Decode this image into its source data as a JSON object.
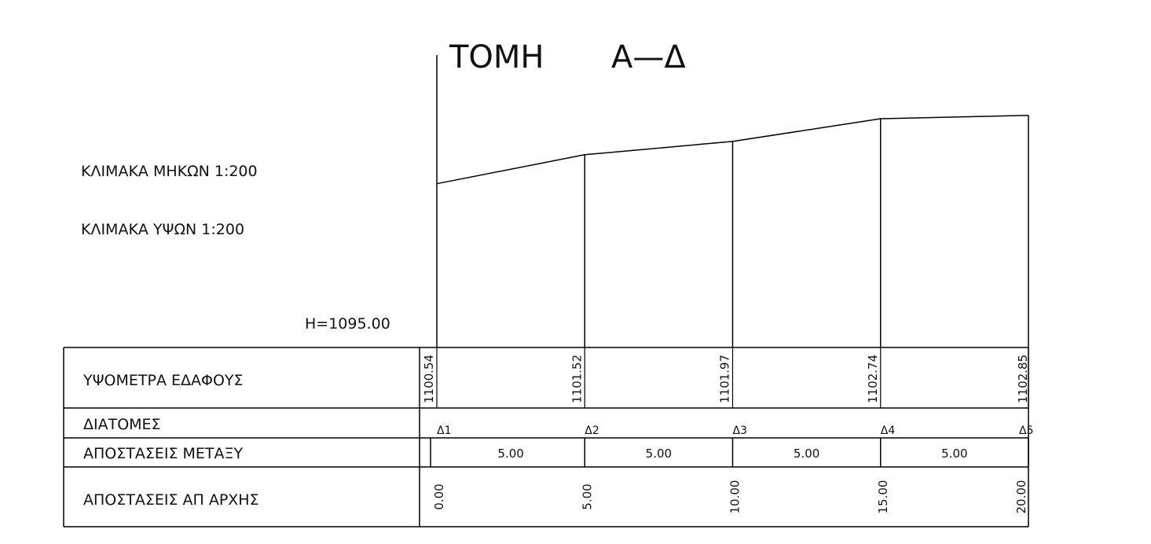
{
  "title": {
    "section": "ΤΟΜΗ",
    "label": "Α—Δ"
  },
  "scales": {
    "lengths": "ΚΛΙΜΑΚΑ ΜΗΚΩΝ 1:200",
    "heights": "ΚΛΙΜΑΚΑ ΥΨΩΝ 1:200"
  },
  "datum": "H=1095.00",
  "rows": {
    "elevations": "ΥΨΟΜΕΤΡΑ ΕΔΑΦΟΥΣ",
    "sections": "ΔΙΑΤΟΜΕΣ",
    "between": "ΑΠΟΣΤΑΣΕΙΣ ΜΕΤΑΞΥ",
    "cumulative": "ΑΠΟΣΤΑΣΕΙΣ ΑΠ ΑΡΧΗΣ"
  },
  "stations": [
    {
      "name": "Δ1",
      "elevation": "1100.54",
      "cumulative": "0.00"
    },
    {
      "name": "Δ2",
      "elevation": "1101.52",
      "cumulative": "5.00"
    },
    {
      "name": "Δ3",
      "elevation": "1101.97",
      "cumulative": "10.00"
    },
    {
      "name": "Δ4",
      "elevation": "1102.74",
      "cumulative": "15.00"
    },
    {
      "name": "Δ5",
      "elevation": "1102.85",
      "cumulative": "20.00"
    }
  ],
  "spacings": [
    "5.00",
    "5.00",
    "5.00",
    "5.00"
  ]
}
